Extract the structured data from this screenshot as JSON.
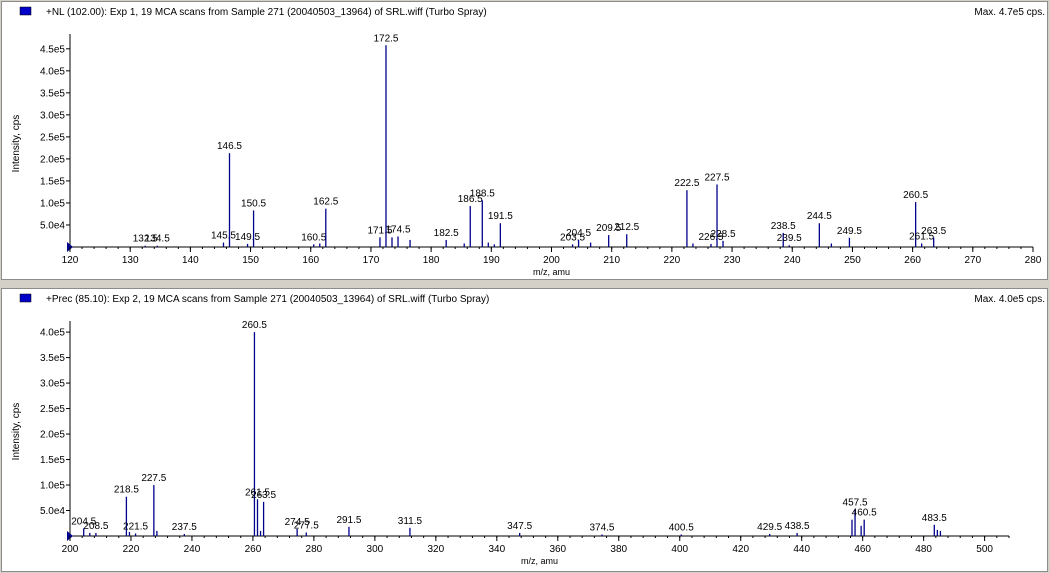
{
  "panels": [
    {
      "header": {
        "title": "+NL (102.00): Exp 1, 19 MCA scans from Sample 271 (20040503_13964) of SRL.wiff (Turbo Spray)",
        "max_label": "Max. 4.7e5 cps."
      },
      "chart_data": {
        "type": "bar",
        "xlabel": "m/z, amu",
        "ylabel": "Intensity, cps",
        "xlim": [
          120,
          280
        ],
        "ylim": [
          0,
          470000
        ],
        "x_ticks": [
          "120",
          "130",
          "140",
          "150",
          "160",
          "170",
          "180",
          "190",
          "200",
          "210",
          "220",
          "230",
          "240",
          "250",
          "260",
          "270",
          "280"
        ],
        "y_ticks": [
          {
            "label": "5.0e4",
            "value": 50000
          },
          {
            "label": "1.0e5",
            "value": 100000
          },
          {
            "label": "1.5e5",
            "value": 150000
          },
          {
            "label": "2.0e5",
            "value": 200000
          },
          {
            "label": "2.5e5",
            "value": 250000
          },
          {
            "label": "3.0e5",
            "value": 300000
          },
          {
            "label": "3.5e5",
            "value": 350000
          },
          {
            "label": "4.0e5",
            "value": 400000
          },
          {
            "label": "4.5e5",
            "value": 450000
          }
        ],
        "peaks": [
          {
            "x": 132.5,
            "y": 3000,
            "label": "132.5"
          },
          {
            "x": 134.5,
            "y": 3000,
            "label": "134.5"
          },
          {
            "x": 145.5,
            "y": 10000,
            "label": "145.5"
          },
          {
            "x": 146.5,
            "y": 213000,
            "label": "146.5"
          },
          {
            "x": 149.5,
            "y": 7000,
            "label": "149.5"
          },
          {
            "x": 150.5,
            "y": 83000,
            "label": "150.5"
          },
          {
            "x": 160.5,
            "y": 6000,
            "label": "160.5"
          },
          {
            "x": 161.5,
            "y": 8000
          },
          {
            "x": 162.5,
            "y": 87000,
            "label": "162.5"
          },
          {
            "x": 171.5,
            "y": 22000,
            "label": "171.5"
          },
          {
            "x": 172.5,
            "y": 458000,
            "label": "172.5"
          },
          {
            "x": 173.5,
            "y": 22000
          },
          {
            "x": 174.5,
            "y": 24000,
            "label": "174.5"
          },
          {
            "x": 176.5,
            "y": 16000
          },
          {
            "x": 182.5,
            "y": 16000,
            "label": "182.5"
          },
          {
            "x": 185.5,
            "y": 8000
          },
          {
            "x": 186.5,
            "y": 93000,
            "label": "186.5"
          },
          {
            "x": 188.5,
            "y": 106000,
            "label": "188.5"
          },
          {
            "x": 189.5,
            "y": 10000
          },
          {
            "x": 190.5,
            "y": 6000
          },
          {
            "x": 191.5,
            "y": 54000,
            "label": "191.5"
          },
          {
            "x": 203.5,
            "y": 6000,
            "label": "203.5"
          },
          {
            "x": 204.5,
            "y": 16000,
            "label": "204.5"
          },
          {
            "x": 206.5,
            "y": 10000
          },
          {
            "x": 209.5,
            "y": 27000,
            "label": "209.5"
          },
          {
            "x": 212.5,
            "y": 29000,
            "label": "212.5"
          },
          {
            "x": 222.5,
            "y": 129000,
            "label": "222.5"
          },
          {
            "x": 223.5,
            "y": 8000
          },
          {
            "x": 226.5,
            "y": 7000,
            "label": "226.5"
          },
          {
            "x": 227.5,
            "y": 142000,
            "label": "227.5"
          },
          {
            "x": 228.5,
            "y": 14000,
            "label": "228.5"
          },
          {
            "x": 238.5,
            "y": 32000,
            "label": "238.5"
          },
          {
            "x": 239.5,
            "y": 4000,
            "label": "239.5"
          },
          {
            "x": 244.5,
            "y": 54000,
            "label": "244.5"
          },
          {
            "x": 246.5,
            "y": 8000
          },
          {
            "x": 249.5,
            "y": 21000,
            "label": "249.5"
          },
          {
            "x": 260.5,
            "y": 102000,
            "label": "260.5"
          },
          {
            "x": 261.5,
            "y": 8000,
            "label": "261.5"
          },
          {
            "x": 263.5,
            "y": 21000,
            "label": "263.5"
          }
        ]
      }
    },
    {
      "header": {
        "title": "+Prec (85.10): Exp 2, 19 MCA scans from Sample 271 (20040503_13964) of SRL.wiff (Turbo Spray)",
        "max_label": "Max. 4.0e5 cps."
      },
      "chart_data": {
        "type": "bar",
        "xlabel": "m/z, amu",
        "ylabel": "Intensity, cps",
        "xlim": [
          200,
          508
        ],
        "ylim": [
          0,
          410000
        ],
        "x_ticks": [
          "200",
          "220",
          "240",
          "260",
          "280",
          "300",
          "320",
          "340",
          "360",
          "380",
          "400",
          "420",
          "440",
          "460",
          "480",
          "500"
        ],
        "y_ticks": [
          {
            "label": "5.0e4",
            "value": 50000
          },
          {
            "label": "1.0e5",
            "value": 100000
          },
          {
            "label": "1.5e5",
            "value": 150000
          },
          {
            "label": "2.0e5",
            "value": 200000
          },
          {
            "label": "2.5e5",
            "value": 250000
          },
          {
            "label": "3.0e5",
            "value": 300000
          },
          {
            "label": "3.5e5",
            "value": 350000
          },
          {
            "label": "4.0e5",
            "value": 400000
          }
        ],
        "peaks": [
          {
            "x": 204.5,
            "y": 15000,
            "label": "204.5"
          },
          {
            "x": 206.5,
            "y": 6000
          },
          {
            "x": 208.5,
            "y": 6000,
            "label": "208.5"
          },
          {
            "x": 218.5,
            "y": 77000,
            "label": "218.5"
          },
          {
            "x": 219.5,
            "y": 8000
          },
          {
            "x": 221.5,
            "y": 5000,
            "label": "221.5"
          },
          {
            "x": 227.5,
            "y": 100000,
            "label": "227.5"
          },
          {
            "x": 228.5,
            "y": 10000
          },
          {
            "x": 237.5,
            "y": 4000,
            "label": "237.5"
          },
          {
            "x": 260.5,
            "y": 400000,
            "label": "260.5"
          },
          {
            "x": 261.5,
            "y": 72000,
            "label": "261.5"
          },
          {
            "x": 262.5,
            "y": 10000
          },
          {
            "x": 263.5,
            "y": 67000,
            "label": "263.5"
          },
          {
            "x": 274.5,
            "y": 14000,
            "label": "274.5"
          },
          {
            "x": 277.5,
            "y": 7000,
            "label": "277.5"
          },
          {
            "x": 291.5,
            "y": 18000,
            "label": "291.5"
          },
          {
            "x": 311.5,
            "y": 16000,
            "label": "311.5"
          },
          {
            "x": 347.5,
            "y": 6000,
            "label": "347.5"
          },
          {
            "x": 374.5,
            "y": 3000,
            "label": "374.5"
          },
          {
            "x": 400.5,
            "y": 3000,
            "label": "400.5"
          },
          {
            "x": 429.5,
            "y": 4000,
            "label": "429.5"
          },
          {
            "x": 438.5,
            "y": 6000,
            "label": "438.5"
          },
          {
            "x": 456.5,
            "y": 32000
          },
          {
            "x": 457.5,
            "y": 52000,
            "label": "457.5"
          },
          {
            "x": 459.5,
            "y": 20000
          },
          {
            "x": 460.5,
            "y": 32000,
            "label": "460.5"
          },
          {
            "x": 483.5,
            "y": 22000,
            "label": "483.5"
          },
          {
            "x": 484.5,
            "y": 12000
          },
          {
            "x": 485.5,
            "y": 10000
          }
        ]
      }
    }
  ],
  "colors": {
    "peak": "#00008b",
    "axis": "#000000",
    "frame_bg": "#d4d0c8",
    "legend_swatch": "#0000c8"
  }
}
